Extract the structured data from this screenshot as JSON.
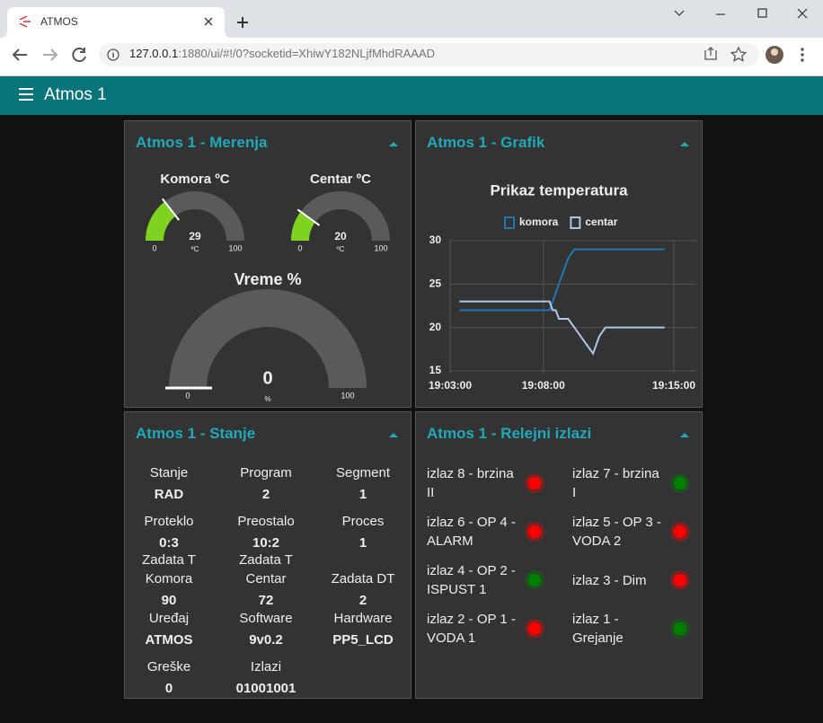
{
  "browser": {
    "tab_title": "ATMOS",
    "url_host": "127.0.0.1",
    "url_path": ":1880/ui/#!/0?socketid=XhiwY182NLjfMhdRAAAD"
  },
  "header": {
    "title": "Atmos 1"
  },
  "merenja": {
    "title": "Atmos 1 - Merenja",
    "gauges": [
      {
        "label": "Komora ºC",
        "value": 29,
        "unit": "ºC",
        "min": 0,
        "max": 100,
        "color": "#7ed321"
      },
      {
        "label": "Centar ºC",
        "value": 20,
        "unit": "ºC",
        "min": 0,
        "max": 100,
        "color": "#7ed321"
      },
      {
        "label": "Vreme %",
        "value": 0,
        "unit": "%",
        "min": 0,
        "max": 100,
        "color": "#7ed321"
      }
    ]
  },
  "grafik": {
    "title": "Atmos 1 - Grafik",
    "chart_data": {
      "type": "line",
      "title": "Prikaz temperatura",
      "x": [
        "19:03:30",
        "19:08:20",
        "19:08:30",
        "19:08:40",
        "19:08:50",
        "19:09:00",
        "19:09:10",
        "19:09:20",
        "19:09:40",
        "19:10:00",
        "19:10:20",
        "19:10:40",
        "19:11:00",
        "19:11:20",
        "19:14:30"
      ],
      "series": [
        {
          "name": "komora",
          "color": "#1f77b4",
          "values": [
            22,
            22,
            23,
            24,
            25,
            26,
            27,
            28,
            29,
            29,
            29,
            29,
            29,
            29,
            29
          ]
        },
        {
          "name": "centar",
          "color": "#aec7e8",
          "values": [
            23,
            23,
            22,
            22,
            21,
            21,
            21,
            21,
            20,
            19,
            18,
            17,
            19,
            20,
            20
          ]
        }
      ],
      "xlim": [
        "19:03:00",
        "19:15:00"
      ],
      "xticks": [
        "19:03:00",
        "19:08:00",
        "19:15:00"
      ],
      "ylim": [
        15,
        30
      ],
      "yticks": [
        15,
        20,
        25,
        30
      ],
      "grid": true
    }
  },
  "stanje": {
    "title": "Atmos 1 - Stanje",
    "items": [
      {
        "label": "Stanje",
        "value": "RAD"
      },
      {
        "label": "Program",
        "value": 2
      },
      {
        "label": "Segment",
        "value": 1
      },
      {
        "label": "Proteklo",
        "value": "0:3"
      },
      {
        "label": "Preostalo",
        "value": "10:2"
      },
      {
        "label": "Proces",
        "value": 1
      },
      {
        "label": "Zadata T Komora",
        "value": 90
      },
      {
        "label": "Zadata T Centar",
        "value": 72
      },
      {
        "label": "Zadata DT",
        "value": 2
      },
      {
        "label": "Uređaj",
        "value": "ATMOS"
      },
      {
        "label": "Software",
        "value": "9v0.2"
      },
      {
        "label": "Hardware",
        "value": "PP5_LCD"
      },
      {
        "label": "Greške",
        "value": 0
      },
      {
        "label": "Izlazi",
        "value": "01001001"
      }
    ]
  },
  "relejni": {
    "title": "Atmos 1 - Relejni izlazi",
    "outputs": [
      {
        "label": "izlaz 8 - brzina II",
        "color": "#ff0000"
      },
      {
        "label": "izlaz 7 - brzina I",
        "color": "#008000"
      },
      {
        "label": "izlaz 6 - OP 4 - ALARM",
        "color": "#ff0000"
      },
      {
        "label": "izlaz 5 - OP 3 - VODA 2",
        "color": "#ff0000"
      },
      {
        "label": "izlaz 4 - OP 2 - ISPUST 1",
        "color": "#008000"
      },
      {
        "label": "izlaz 3 - Dim",
        "color": "#ff0000"
      },
      {
        "label": "izlaz 2 - OP 1 - VODA 1",
        "color": "#ff0000"
      },
      {
        "label": "izlaz 1 - Grejanje",
        "color": "#008000"
      }
    ]
  }
}
